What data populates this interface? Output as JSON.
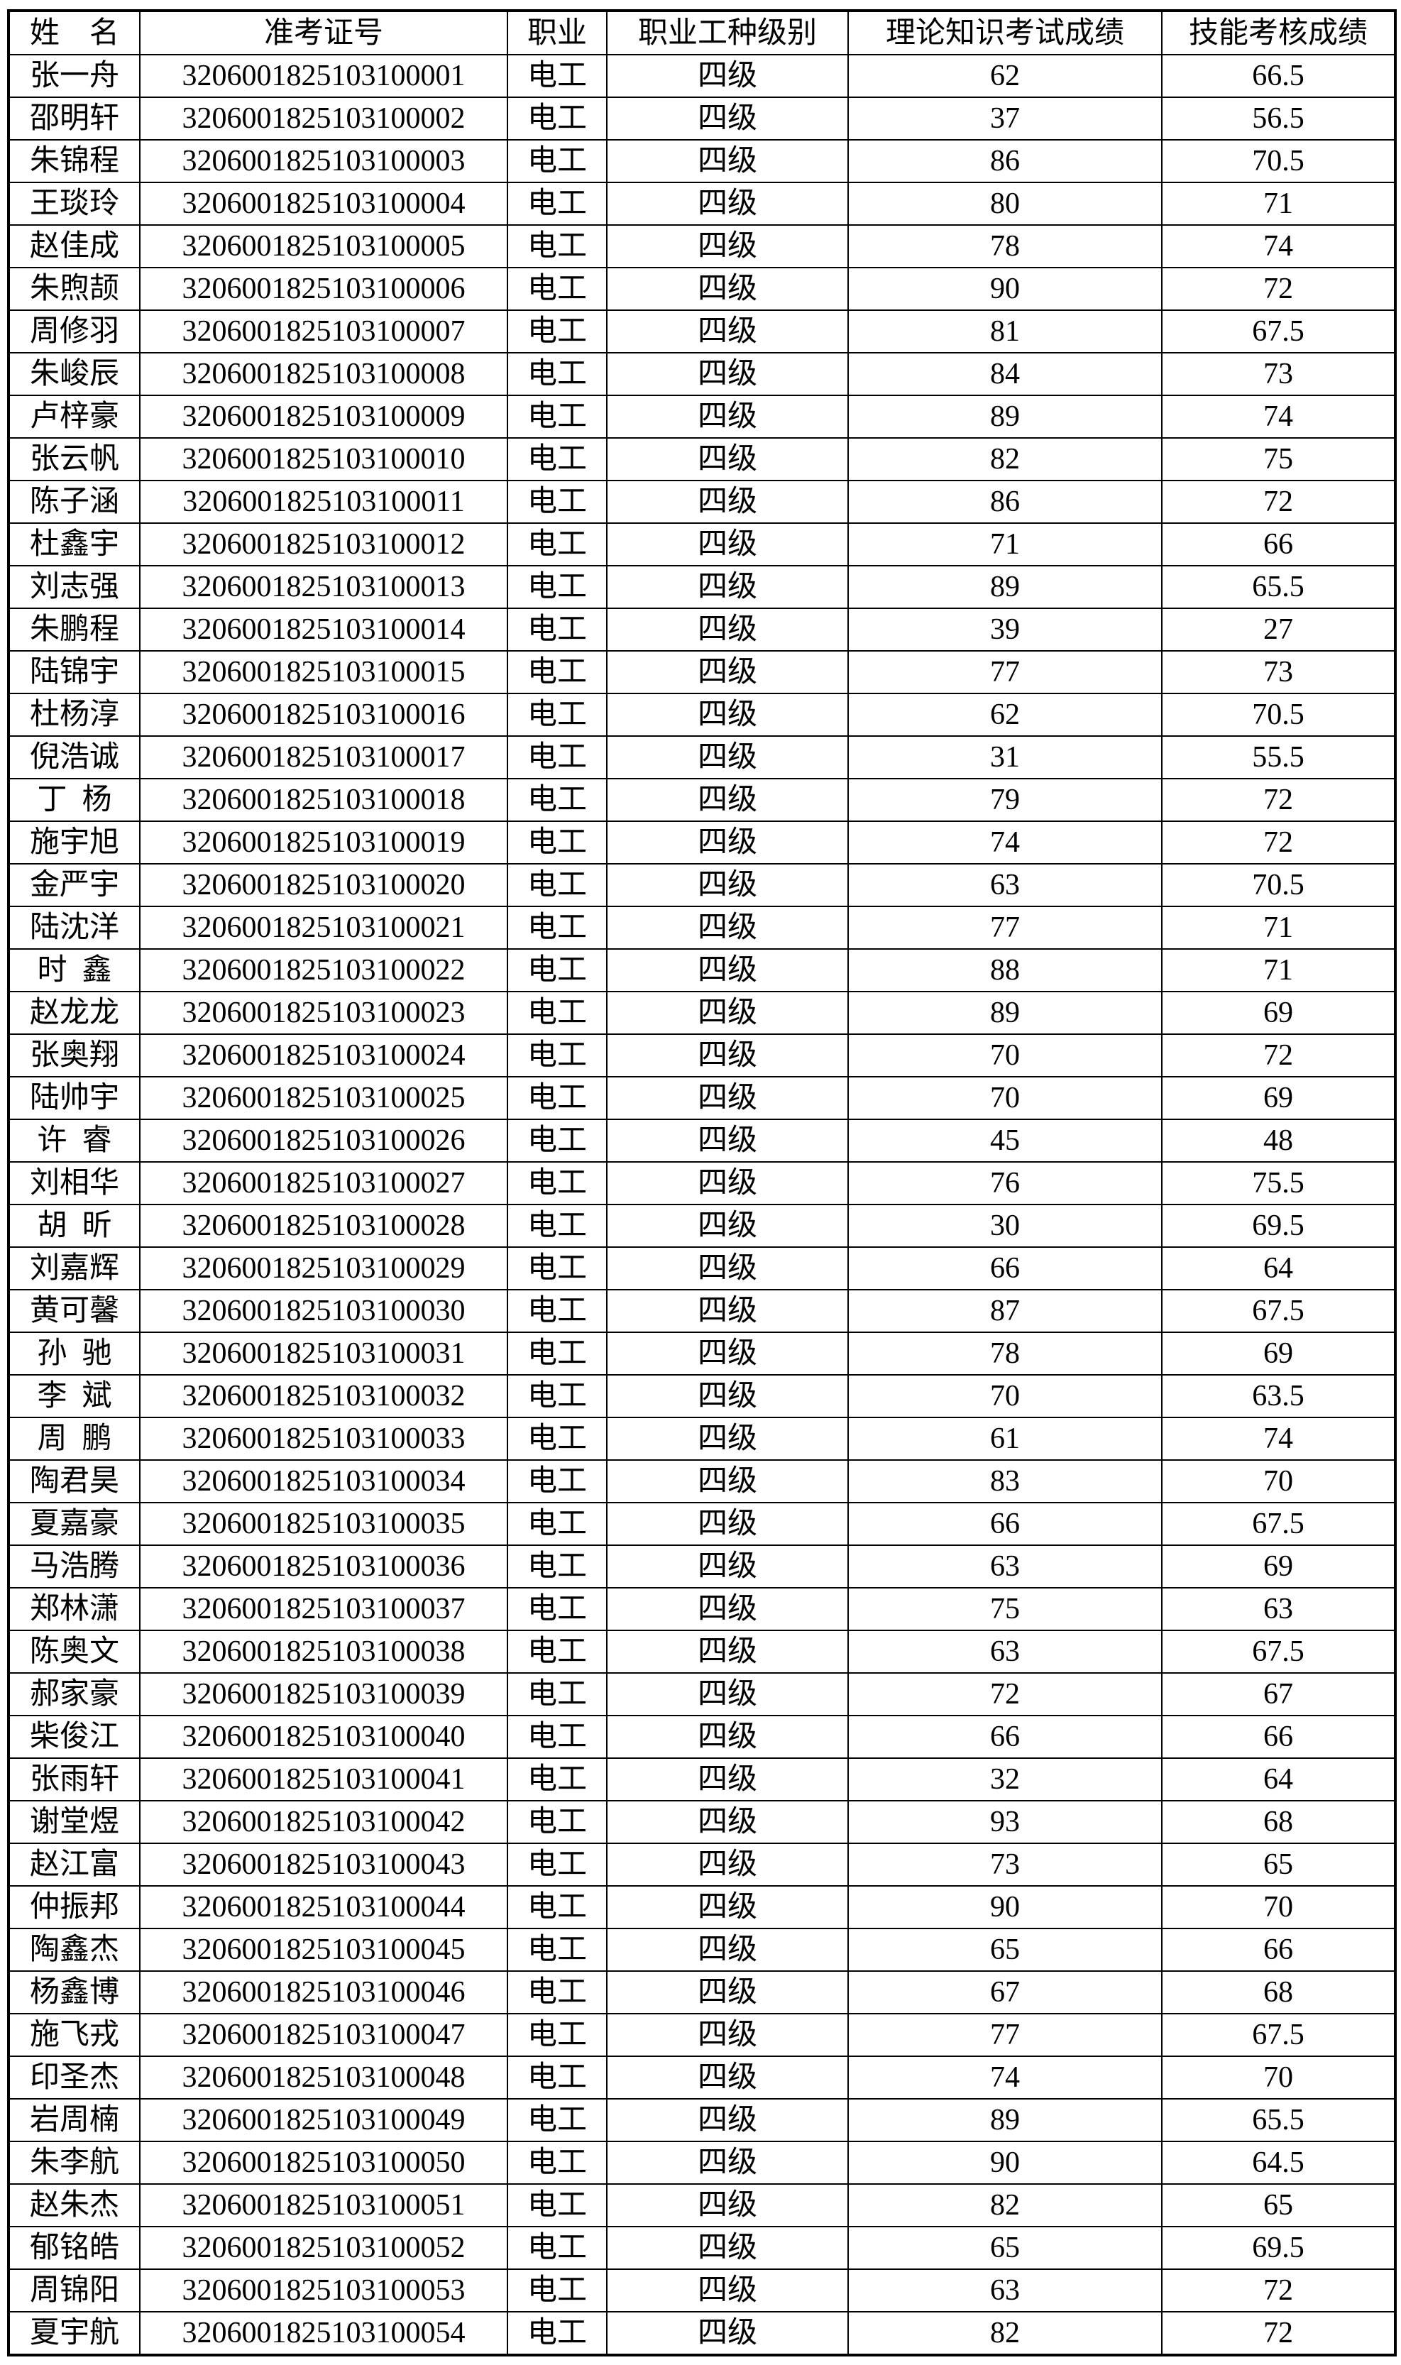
{
  "table": {
    "headers": [
      "姓　名",
      "准考证号",
      "职业",
      "职业工种级别",
      "理论知识考试成绩",
      "技能考核成绩"
    ],
    "rows": [
      {
        "name": "张一舟",
        "ticket": "3206001825103100001",
        "occupation": "电工",
        "level": "四级",
        "theory": "62",
        "skill": "66.5"
      },
      {
        "name": "邵明轩",
        "ticket": "3206001825103100002",
        "occupation": "电工",
        "level": "四级",
        "theory": "37",
        "skill": "56.5"
      },
      {
        "name": "朱锦程",
        "ticket": "3206001825103100003",
        "occupation": "电工",
        "level": "四级",
        "theory": "86",
        "skill": "70.5"
      },
      {
        "name": "王琰玲",
        "ticket": "3206001825103100004",
        "occupation": "电工",
        "level": "四级",
        "theory": "80",
        "skill": "71"
      },
      {
        "name": "赵佳成",
        "ticket": "3206001825103100005",
        "occupation": "电工",
        "level": "四级",
        "theory": "78",
        "skill": "74"
      },
      {
        "name": "朱煦颉",
        "ticket": "3206001825103100006",
        "occupation": "电工",
        "level": "四级",
        "theory": "90",
        "skill": "72"
      },
      {
        "name": "周修羽",
        "ticket": "3206001825103100007",
        "occupation": "电工",
        "level": "四级",
        "theory": "81",
        "skill": "67.5"
      },
      {
        "name": "朱峻辰",
        "ticket": "3206001825103100008",
        "occupation": "电工",
        "level": "四级",
        "theory": "84",
        "skill": "73"
      },
      {
        "name": "卢梓豪",
        "ticket": "3206001825103100009",
        "occupation": "电工",
        "level": "四级",
        "theory": "89",
        "skill": "74"
      },
      {
        "name": "张云帆",
        "ticket": "3206001825103100010",
        "occupation": "电工",
        "level": "四级",
        "theory": "82",
        "skill": "75"
      },
      {
        "name": "陈子涵",
        "ticket": "3206001825103100011",
        "occupation": "电工",
        "level": "四级",
        "theory": "86",
        "skill": "72"
      },
      {
        "name": "杜鑫宇",
        "ticket": "3206001825103100012",
        "occupation": "电工",
        "level": "四级",
        "theory": "71",
        "skill": "66"
      },
      {
        "name": "刘志强",
        "ticket": "3206001825103100013",
        "occupation": "电工",
        "level": "四级",
        "theory": "89",
        "skill": "65.5"
      },
      {
        "name": "朱鹏程",
        "ticket": "3206001825103100014",
        "occupation": "电工",
        "level": "四级",
        "theory": "39",
        "skill": "27"
      },
      {
        "name": "陆锦宇",
        "ticket": "3206001825103100015",
        "occupation": "电工",
        "level": "四级",
        "theory": "77",
        "skill": "73"
      },
      {
        "name": "杜杨淳",
        "ticket": "3206001825103100016",
        "occupation": "电工",
        "level": "四级",
        "theory": "62",
        "skill": "70.5"
      },
      {
        "name": "倪浩诚",
        "ticket": "3206001825103100017",
        "occupation": "电工",
        "level": "四级",
        "theory": "31",
        "skill": "55.5"
      },
      {
        "name": "丁 杨",
        "ticket": "3206001825103100018",
        "occupation": "电工",
        "level": "四级",
        "theory": "79",
        "skill": "72"
      },
      {
        "name": "施宇旭",
        "ticket": "3206001825103100019",
        "occupation": "电工",
        "level": "四级",
        "theory": "74",
        "skill": "72"
      },
      {
        "name": "金严宇",
        "ticket": "3206001825103100020",
        "occupation": "电工",
        "level": "四级",
        "theory": "63",
        "skill": "70.5"
      },
      {
        "name": "陆沈洋",
        "ticket": "3206001825103100021",
        "occupation": "电工",
        "level": "四级",
        "theory": "77",
        "skill": "71"
      },
      {
        "name": "时 鑫",
        "ticket": "3206001825103100022",
        "occupation": "电工",
        "level": "四级",
        "theory": "88",
        "skill": "71"
      },
      {
        "name": "赵龙龙",
        "ticket": "3206001825103100023",
        "occupation": "电工",
        "level": "四级",
        "theory": "89",
        "skill": "69"
      },
      {
        "name": "张奥翔",
        "ticket": "3206001825103100024",
        "occupation": "电工",
        "level": "四级",
        "theory": "70",
        "skill": "72"
      },
      {
        "name": "陆帅宇",
        "ticket": "3206001825103100025",
        "occupation": "电工",
        "level": "四级",
        "theory": "70",
        "skill": "69"
      },
      {
        "name": "许 睿",
        "ticket": "3206001825103100026",
        "occupation": "电工",
        "level": "四级",
        "theory": "45",
        "skill": "48"
      },
      {
        "name": "刘相华",
        "ticket": "3206001825103100027",
        "occupation": "电工",
        "level": "四级",
        "theory": "76",
        "skill": "75.5"
      },
      {
        "name": "胡 昕",
        "ticket": "3206001825103100028",
        "occupation": "电工",
        "level": "四级",
        "theory": "30",
        "skill": "69.5"
      },
      {
        "name": "刘嘉辉",
        "ticket": "3206001825103100029",
        "occupation": "电工",
        "level": "四级",
        "theory": "66",
        "skill": "64"
      },
      {
        "name": "黄可馨",
        "ticket": "3206001825103100030",
        "occupation": "电工",
        "level": "四级",
        "theory": "87",
        "skill": "67.5"
      },
      {
        "name": "孙 驰",
        "ticket": "3206001825103100031",
        "occupation": "电工",
        "level": "四级",
        "theory": "78",
        "skill": "69"
      },
      {
        "name": "李 斌",
        "ticket": "3206001825103100032",
        "occupation": "电工",
        "level": "四级",
        "theory": "70",
        "skill": "63.5"
      },
      {
        "name": "周 鹏",
        "ticket": "3206001825103100033",
        "occupation": "电工",
        "level": "四级",
        "theory": "61",
        "skill": "74"
      },
      {
        "name": "陶君昊",
        "ticket": "3206001825103100034",
        "occupation": "电工",
        "level": "四级",
        "theory": "83",
        "skill": "70"
      },
      {
        "name": "夏嘉豪",
        "ticket": "3206001825103100035",
        "occupation": "电工",
        "level": "四级",
        "theory": "66",
        "skill": "67.5"
      },
      {
        "name": "马浩腾",
        "ticket": "3206001825103100036",
        "occupation": "电工",
        "level": "四级",
        "theory": "63",
        "skill": "69"
      },
      {
        "name": "郑林潇",
        "ticket": "3206001825103100037",
        "occupation": "电工",
        "level": "四级",
        "theory": "75",
        "skill": "63"
      },
      {
        "name": "陈奥文",
        "ticket": "3206001825103100038",
        "occupation": "电工",
        "level": "四级",
        "theory": "63",
        "skill": "67.5"
      },
      {
        "name": "郝家豪",
        "ticket": "3206001825103100039",
        "occupation": "电工",
        "level": "四级",
        "theory": "72",
        "skill": "67"
      },
      {
        "name": "柴俊江",
        "ticket": "3206001825103100040",
        "occupation": "电工",
        "level": "四级",
        "theory": "66",
        "skill": "66"
      },
      {
        "name": "张雨轩",
        "ticket": "3206001825103100041",
        "occupation": "电工",
        "level": "四级",
        "theory": "32",
        "skill": "64"
      },
      {
        "name": "谢堂煜",
        "ticket": "3206001825103100042",
        "occupation": "电工",
        "level": "四级",
        "theory": "93",
        "skill": "68"
      },
      {
        "name": "赵江富",
        "ticket": "3206001825103100043",
        "occupation": "电工",
        "level": "四级",
        "theory": "73",
        "skill": "65"
      },
      {
        "name": "仲振邦",
        "ticket": "3206001825103100044",
        "occupation": "电工",
        "level": "四级",
        "theory": "90",
        "skill": "70"
      },
      {
        "name": "陶鑫杰",
        "ticket": "3206001825103100045",
        "occupation": "电工",
        "level": "四级",
        "theory": "65",
        "skill": "66"
      },
      {
        "name": "杨鑫博",
        "ticket": "3206001825103100046",
        "occupation": "电工",
        "level": "四级",
        "theory": "67",
        "skill": "68"
      },
      {
        "name": "施飞戎",
        "ticket": "3206001825103100047",
        "occupation": "电工",
        "level": "四级",
        "theory": "77",
        "skill": "67.5"
      },
      {
        "name": "印圣杰",
        "ticket": "3206001825103100048",
        "occupation": "电工",
        "level": "四级",
        "theory": "74",
        "skill": "70"
      },
      {
        "name": "岩周楠",
        "ticket": "3206001825103100049",
        "occupation": "电工",
        "level": "四级",
        "theory": "89",
        "skill": "65.5"
      },
      {
        "name": "朱李航",
        "ticket": "3206001825103100050",
        "occupation": "电工",
        "level": "四级",
        "theory": "90",
        "skill": "64.5"
      },
      {
        "name": "赵朱杰",
        "ticket": "3206001825103100051",
        "occupation": "电工",
        "level": "四级",
        "theory": "82",
        "skill": "65"
      },
      {
        "name": "郁铭皓",
        "ticket": "3206001825103100052",
        "occupation": "电工",
        "level": "四级",
        "theory": "65",
        "skill": "69.5"
      },
      {
        "name": "周锦阳",
        "ticket": "3206001825103100053",
        "occupation": "电工",
        "level": "四级",
        "theory": "63",
        "skill": "72"
      },
      {
        "name": "夏宇航",
        "ticket": "3206001825103100054",
        "occupation": "电工",
        "level": "四级",
        "theory": "82",
        "skill": "72"
      }
    ]
  }
}
